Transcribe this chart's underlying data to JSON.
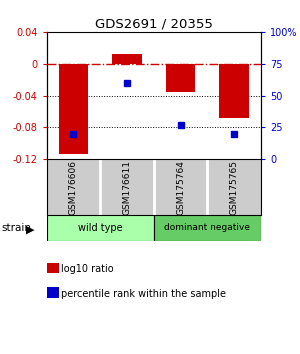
{
  "title": "GDS2691 / 20355",
  "samples": [
    "GSM176606",
    "GSM176611",
    "GSM175764",
    "GSM175765"
  ],
  "bar_values": [
    -0.113,
    0.012,
    -0.035,
    -0.068
  ],
  "percentile_values": [
    0.2,
    0.6,
    0.27,
    0.2
  ],
  "bar_color": "#cc0000",
  "dot_color": "#0000cc",
  "ylim_left": [
    -0.12,
    0.04
  ],
  "ylim_right": [
    0,
    100
  ],
  "yticks_left": [
    0.04,
    0,
    -0.04,
    -0.08,
    -0.12
  ],
  "yticks_right": [
    100,
    75,
    50,
    25,
    0
  ],
  "ytick_labels_left": [
    "0.04",
    "0",
    "-0.04",
    "-0.08",
    "-0.12"
  ],
  "ytick_labels_right": [
    "100%",
    "75",
    "50",
    "25",
    "0"
  ],
  "hline_value": 0,
  "hline_color": "#cc0000",
  "hline_style": "-.",
  "dotted_lines": [
    -0.04,
    -0.08
  ],
  "groups": [
    {
      "label": "wild type",
      "samples": [
        0,
        1
      ],
      "color": "#aaffaa"
    },
    {
      "label": "dominant negative",
      "samples": [
        2,
        3
      ],
      "color": "#66cc66"
    }
  ],
  "group_label": "strain",
  "legend_items": [
    {
      "color": "#cc0000",
      "label": "log10 ratio"
    },
    {
      "color": "#0000cc",
      "label": "percentile rank within the sample"
    }
  ],
  "bar_width": 0.55,
  "background_color": "#ffffff",
  "plot_bg_color": "#ffffff",
  "sample_box_color": "#cccccc",
  "sample_box_border": "#888888"
}
